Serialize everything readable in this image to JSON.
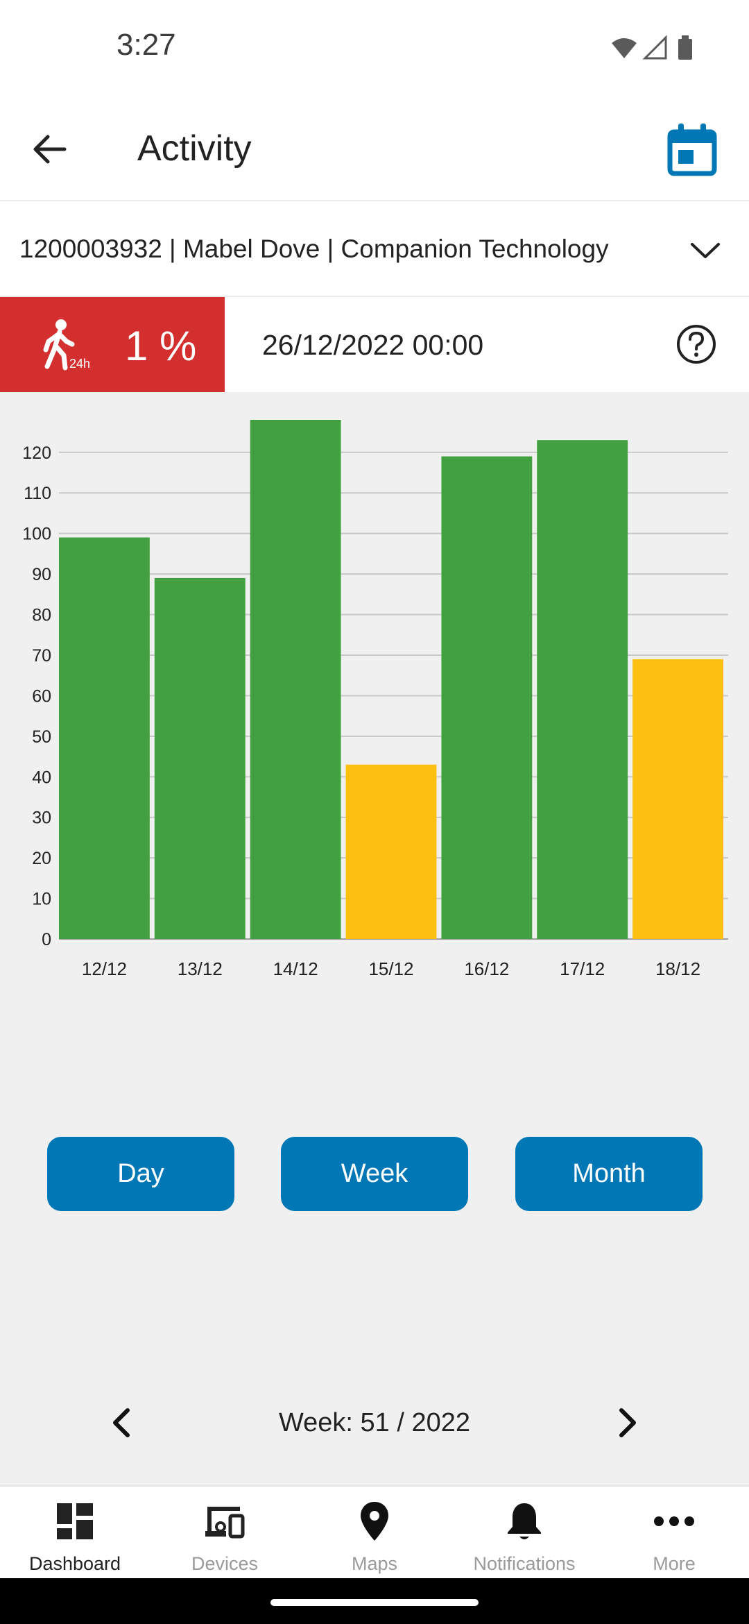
{
  "status_bar": {
    "time": "3:27"
  },
  "app_bar": {
    "title": "Activity"
  },
  "selector": {
    "value": "1200003932 | Mabel Dove | Companion Technology"
  },
  "activity": {
    "percent": "1 %",
    "badge_icon_caption": "24h",
    "datetime": "26/12/2022 00:00"
  },
  "colors": {
    "badge_red": "#d32f2f",
    "bar_green": "#43a040",
    "bar_amber": "#fdc010",
    "primary_blue": "#0277b5"
  },
  "chart_data": {
    "type": "bar",
    "categories": [
      "12/12",
      "13/12",
      "14/12",
      "15/12",
      "16/12",
      "17/12",
      "18/12"
    ],
    "values": [
      99,
      89,
      128,
      43,
      119,
      123,
      69
    ],
    "bar_colors": [
      "#43a040",
      "#43a040",
      "#43a040",
      "#fdc010",
      "#43a040",
      "#43a040",
      "#fdc010"
    ],
    "yticks": [
      0,
      10,
      20,
      30,
      40,
      50,
      60,
      70,
      80,
      90,
      100,
      110,
      120
    ],
    "ylim": [
      0,
      128
    ],
    "grid": true,
    "title": "",
    "xlabel": "",
    "ylabel": ""
  },
  "week_nav": {
    "label": "Week: 51 / 2022"
  },
  "period_buttons": {
    "day": "Day",
    "week": "Week",
    "month": "Month"
  },
  "bottom_nav": {
    "items": [
      {
        "label": "Dashboard",
        "icon": "dashboard-icon",
        "active": true
      },
      {
        "label": "Devices",
        "icon": "devices-icon",
        "active": false
      },
      {
        "label": "Maps",
        "icon": "map-pin-icon",
        "active": false
      },
      {
        "label": "Notifications",
        "icon": "bell-icon",
        "active": false
      },
      {
        "label": "More",
        "icon": "more-dots-icon",
        "active": false
      }
    ]
  }
}
